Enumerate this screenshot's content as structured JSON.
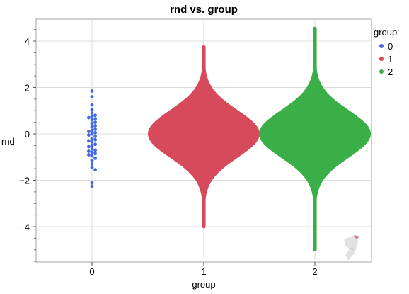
{
  "chart_data": {
    "type": "scatter",
    "subtype": "beeswarm-violin",
    "title": "rnd vs. group",
    "xlabel": "group",
    "ylabel": "rnd",
    "categories": [
      "0",
      "1",
      "2"
    ],
    "ylim": [
      -5.5,
      5
    ],
    "yticks": [
      -4,
      -2,
      0,
      2,
      4
    ],
    "grid": true,
    "legend": {
      "title": "group",
      "position": "right",
      "entries": [
        "0",
        "1",
        "2"
      ]
    },
    "colors": [
      "#4169E1",
      "#D64A5B",
      "#3AAF47"
    ],
    "series": [
      {
        "name": "0",
        "points": [
          1.85,
          1.6,
          1.25,
          1.05,
          0.9,
          0.8,
          0.75,
          0.7,
          0.65,
          0.6,
          0.5,
          0.45,
          0.35,
          0.3,
          0.2,
          0.15,
          0.1,
          0.05,
          0.0,
          -0.05,
          -0.1,
          -0.2,
          -0.25,
          -0.3,
          -0.35,
          -0.45,
          -0.5,
          -0.55,
          -0.65,
          -0.7,
          -0.75,
          -0.8,
          -0.85,
          -0.9,
          -0.95,
          -1.05,
          -1.15,
          -1.3,
          -1.45,
          -1.55,
          -2.1,
          -2.25
        ]
      },
      {
        "name": "1",
        "min": -4.0,
        "max": 3.75
      },
      {
        "name": "2",
        "min": -5.0,
        "max": 4.55
      }
    ]
  }
}
